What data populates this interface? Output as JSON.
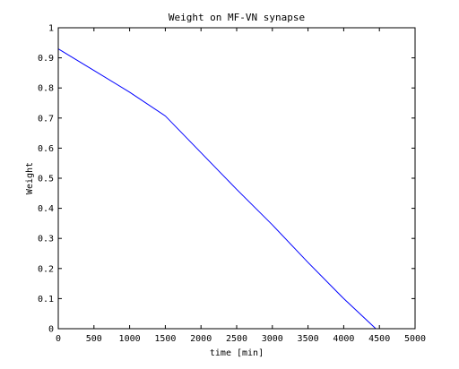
{
  "chart_data": {
    "type": "line",
    "title": "Weight on MF-VN synapse",
    "xlabel": "time [min]",
    "ylabel": "Weight",
    "xlim": [
      0,
      5000
    ],
    "ylim": [
      0,
      1
    ],
    "x_ticks": [
      "0",
      "500",
      "1000",
      "1500",
      "2000",
      "2500",
      "3000",
      "3500",
      "4000",
      "4500",
      "5000"
    ],
    "y_ticks": [
      "0",
      "0.1",
      "0.2",
      "0.3",
      "0.4",
      "0.5",
      "0.6",
      "0.7",
      "0.8",
      "0.9",
      "1"
    ],
    "grid": false,
    "series": [
      {
        "name": "weight",
        "color": "#0000ff",
        "x": [
          0,
          500,
          1000,
          1500,
          2000,
          2500,
          3000,
          3500,
          4000,
          4450
        ],
        "y": [
          0.93,
          0.858,
          0.786,
          0.707,
          0.585,
          0.463,
          0.345,
          0.22,
          0.1,
          0.0
        ]
      }
    ]
  }
}
